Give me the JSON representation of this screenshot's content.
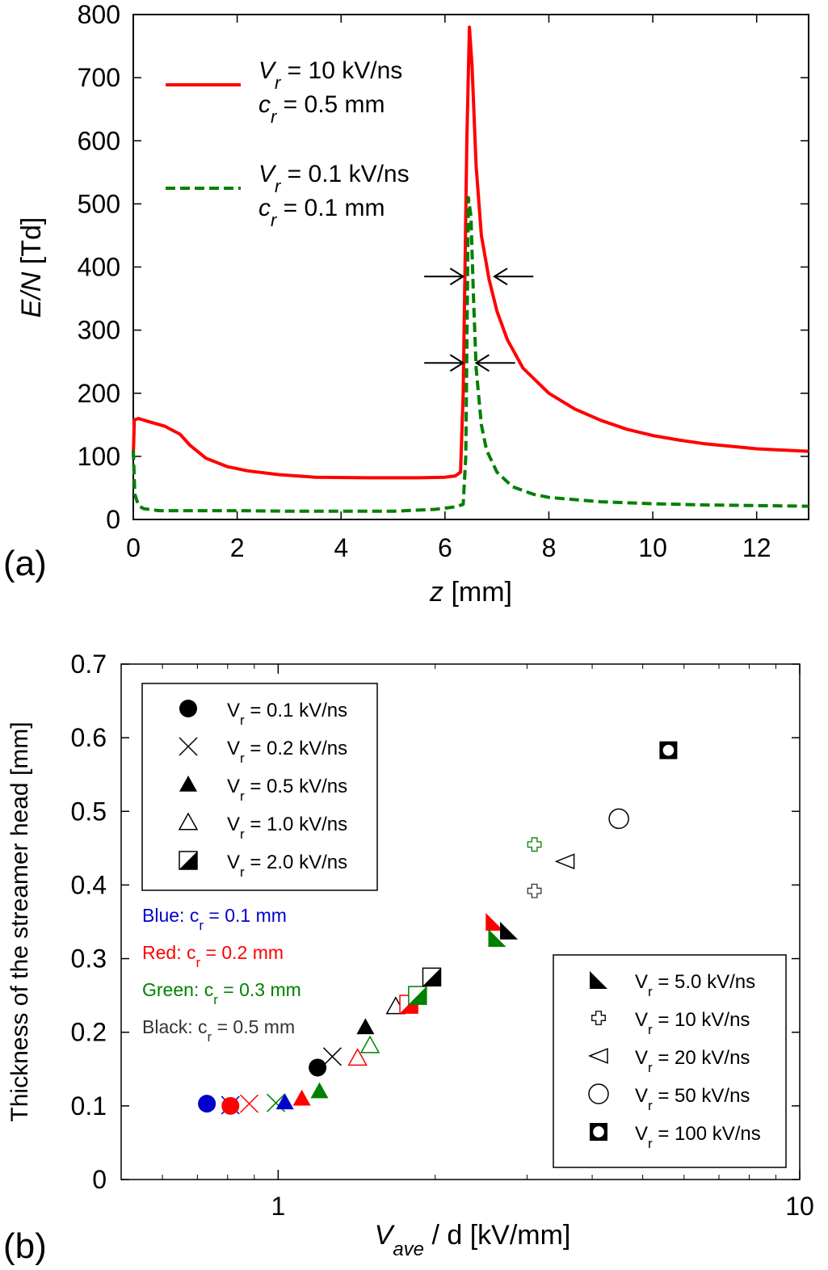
{
  "chart_data": [
    {
      "type": "line",
      "panel_label": "(a)",
      "xlabel": {
        "italic": "z",
        "rest": " [mm]"
      },
      "ylabel": {
        "italic": "E/N",
        "rest": " [Td]"
      },
      "xlim": [
        0,
        13
      ],
      "ylim": [
        0,
        800
      ],
      "xticks": [
        0,
        2,
        4,
        6,
        8,
        10,
        12
      ],
      "yticks": [
        0,
        100,
        200,
        300,
        400,
        500,
        600,
        700,
        800
      ],
      "legend": [
        {
          "line1_sym": "V",
          "line1_sub": "r",
          "line1_rest": " = 10 kV/ns",
          "line2_sym": "c",
          "line2_sub": "r",
          "line2_rest": " = 0.5 mm",
          "color": "#ff0000",
          "dash": "solid"
        },
        {
          "line1_sym": "V",
          "line1_sub": "r",
          "line1_rest": " = 0.1 kV/ns",
          "line2_sym": "c",
          "line2_sub": "r",
          "line2_rest": " = 0.1 mm",
          "color": "#008000",
          "dash": "dashed"
        }
      ],
      "series": [
        {
          "color": "#ff0000",
          "dash": "solid",
          "x": [
            0,
            0.02,
            0.1,
            0.3,
            0.6,
            0.9,
            1.1,
            1.4,
            1.8,
            2.2,
            2.8,
            3.5,
            4.5,
            5.5,
            6.0,
            6.2,
            6.3,
            6.35,
            6.42,
            6.47,
            6.52,
            6.6,
            6.7,
            6.85,
            7.0,
            7.2,
            7.5,
            8.0,
            8.5,
            9.0,
            9.5,
            10.0,
            10.5,
            11.0,
            11.5,
            12.0,
            12.5,
            13.0
          ],
          "y": [
            100,
            158,
            160,
            155,
            148,
            135,
            117,
            97,
            84,
            77,
            71,
            67,
            66,
            66,
            67,
            69,
            75,
            200,
            600,
            780,
            720,
            560,
            450,
            380,
            330,
            285,
            240,
            200,
            175,
            157,
            143,
            133,
            126,
            120,
            116,
            112,
            110,
            108
          ]
        },
        {
          "color": "#008000",
          "dash": "dashed",
          "x": [
            0,
            0.03,
            0.1,
            0.2,
            0.5,
            1.0,
            2.0,
            3.0,
            4.0,
            5.0,
            5.8,
            6.2,
            6.35,
            6.4,
            6.45,
            6.5,
            6.55,
            6.6,
            6.7,
            6.8,
            7.0,
            7.3,
            7.7,
            8.0,
            9.0,
            10.0,
            11.0,
            12.0,
            13.0
          ],
          "y": [
            110,
            40,
            22,
            17,
            14,
            14,
            14,
            13,
            13,
            13,
            16,
            20,
            24,
            100,
            510,
            480,
            350,
            240,
            150,
            110,
            75,
            52,
            40,
            35,
            28,
            25,
            23,
            22,
            21
          ]
        }
      ],
      "annotations": [
        {
          "type": "arrow-right",
          "x_tail": 5.6,
          "x_head": 6.35,
          "y": 385
        },
        {
          "type": "arrow-left",
          "x_tail": 7.7,
          "x_head": 6.95,
          "y": 385
        },
        {
          "type": "arrow-right",
          "x_tail": 5.6,
          "x_head": 6.35,
          "y": 248
        },
        {
          "type": "arrow-left",
          "x_tail": 7.35,
          "x_head": 6.6,
          "y": 248
        }
      ]
    },
    {
      "type": "scatter",
      "panel_label": "(b)",
      "xscale": "log",
      "xlim": [
        0.5,
        10
      ],
      "ylim": [
        0,
        0.7
      ],
      "xticks": [
        1,
        10
      ],
      "yticks": [
        0,
        0.1,
        0.2,
        0.3,
        0.4,
        0.5,
        0.6,
        0.7
      ],
      "xlabel": {
        "sym": "V",
        "sub": "ave",
        "rest": " / d [kV/mm]"
      },
      "ylabel": "Thickness of the streamer head [mm]",
      "legend_top_left": [
        {
          "marker": "circle",
          "sym": "V",
          "sub": "r",
          "rest": " = 0.1 kV/ns"
        },
        {
          "marker": "cross",
          "sym": "V",
          "sub": "r",
          "rest": " = 0.2 kV/ns"
        },
        {
          "marker": "triangle",
          "sym": "V",
          "sub": "r",
          "rest": " = 0.5 kV/ns"
        },
        {
          "marker": "triangle-open",
          "sym": "V",
          "sub": "r",
          "rest": " = 1.0 kV/ns"
        },
        {
          "marker": "half-square",
          "sym": "V",
          "sub": "r",
          "rest": " = 2.0 kV/ns"
        }
      ],
      "color_key": [
        {
          "name": "Blue:",
          "pad": "   ",
          "sym": "c",
          "sub": "r",
          "rest": " = 0.1 mm",
          "color": "#0000cc"
        },
        {
          "name": "Red:",
          "pad": "     ",
          "sym": "c",
          "sub": "r",
          "rest": " = 0.2 mm",
          "color": "#ff0000"
        },
        {
          "name": "Green:",
          "pad": " ",
          "sym": "c",
          "sub": "r",
          "rest": " = 0.3 mm",
          "color": "#008000"
        },
        {
          "name": "Black:",
          "pad": "  ",
          "sym": "c",
          "sub": "r",
          "rest": " = 0.5 mm",
          "color": "#333333"
        }
      ],
      "legend_bottom_right": [
        {
          "marker": "corner-triangle",
          "sym": "V",
          "sub": "r",
          "rest": " = 5.0 kV/ns"
        },
        {
          "marker": "plus-open",
          "sym": "V",
          "sub": "r",
          "rest": " = 10 kV/ns"
        },
        {
          "marker": "left-triangle",
          "sym": "V",
          "sub": "r",
          "rest": " = 20 kV/ns"
        },
        {
          "marker": "circle-open",
          "sym": "V",
          "sub": "r",
          "rest": " = 50 kV/ns"
        },
        {
          "marker": "square-dot",
          "sym": "V",
          "sub": "r",
          "rest": " = 100 kV/ns"
        }
      ],
      "points": [
        {
          "x": 0.73,
          "y": 0.103,
          "marker": "circle",
          "color": "#0000cc"
        },
        {
          "x": 0.81,
          "y": 0.101,
          "marker": "cross",
          "color": "#0000cc"
        },
        {
          "x": 0.81,
          "y": 0.1,
          "marker": "circle",
          "color": "#ff0000"
        },
        {
          "x": 0.88,
          "y": 0.103,
          "marker": "cross",
          "color": "#ff0000"
        },
        {
          "x": 0.99,
          "y": 0.104,
          "marker": "cross",
          "color": "#008000"
        },
        {
          "x": 1.03,
          "y": 0.105,
          "marker": "triangle",
          "color": "#0000cc"
        },
        {
          "x": 1.11,
          "y": 0.11,
          "marker": "triangle",
          "color": "#ff0000"
        },
        {
          "x": 1.2,
          "y": 0.12,
          "marker": "triangle",
          "color": "#008000"
        },
        {
          "x": 1.19,
          "y": 0.152,
          "marker": "circle",
          "color": "#000000"
        },
        {
          "x": 1.27,
          "y": 0.167,
          "marker": "cross",
          "color": "#000000"
        },
        {
          "x": 1.42,
          "y": 0.165,
          "marker": "triangle-open",
          "color": "#ff0000"
        },
        {
          "x": 1.5,
          "y": 0.182,
          "marker": "triangle-open",
          "color": "#008000"
        },
        {
          "x": 1.47,
          "y": 0.207,
          "marker": "triangle",
          "color": "#000000"
        },
        {
          "x": 1.68,
          "y": 0.235,
          "marker": "triangle-open",
          "color": "#000000"
        },
        {
          "x": 1.78,
          "y": 0.238,
          "marker": "half-square",
          "color": "#ff0000"
        },
        {
          "x": 1.85,
          "y": 0.25,
          "marker": "half-square",
          "color": "#008000"
        },
        {
          "x": 1.97,
          "y": 0.275,
          "marker": "half-square",
          "color": "#000000"
        },
        {
          "x": 2.6,
          "y": 0.35,
          "marker": "corner-triangle",
          "color": "#ff0000"
        },
        {
          "x": 2.63,
          "y": 0.328,
          "marker": "corner-triangle",
          "color": "#008000"
        },
        {
          "x": 2.77,
          "y": 0.338,
          "marker": "corner-triangle",
          "color": "#000000"
        },
        {
          "x": 3.1,
          "y": 0.455,
          "marker": "plus-open",
          "color": "#008000"
        },
        {
          "x": 3.1,
          "y": 0.392,
          "marker": "plus-open",
          "color": "#333333"
        },
        {
          "x": 3.55,
          "y": 0.432,
          "marker": "left-triangle",
          "color": "#000000"
        },
        {
          "x": 4.5,
          "y": 0.49,
          "marker": "circle-open",
          "color": "#000000"
        },
        {
          "x": 5.6,
          "y": 0.583,
          "marker": "square-dot",
          "color": "#000000"
        }
      ]
    }
  ]
}
